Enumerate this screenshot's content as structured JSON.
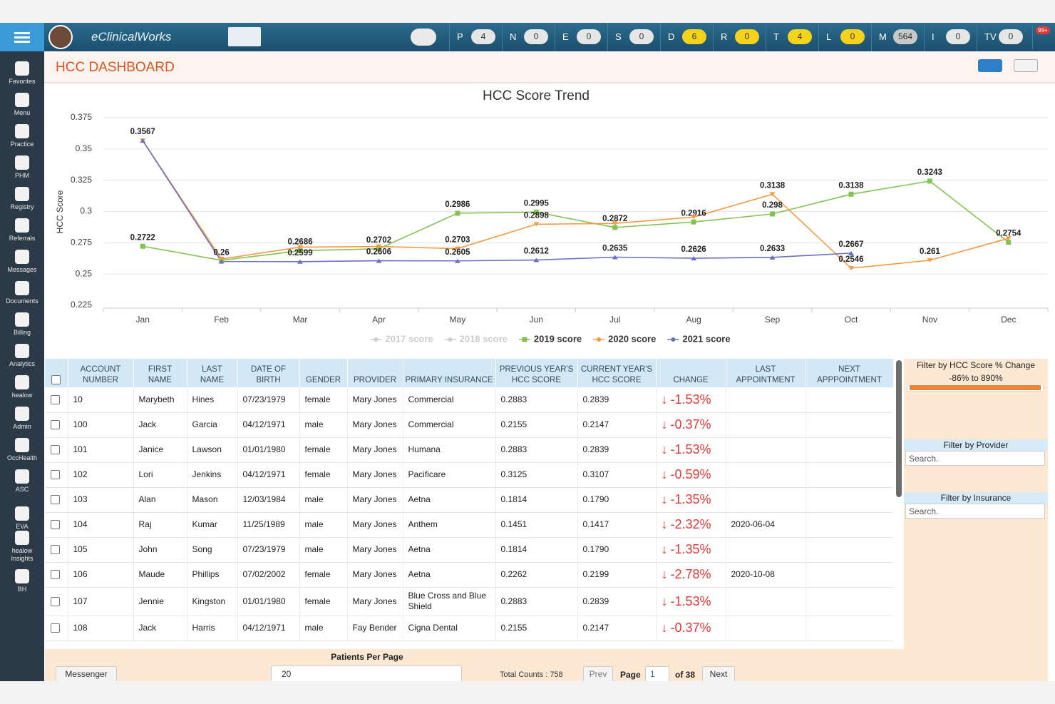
{
  "topbar": {
    "app_name": "eClinicalWorks",
    "badges": [
      {
        "label": "P",
        "count": 4,
        "color": "#e6e6e6"
      },
      {
        "label": "N",
        "count": 0,
        "color": "#e6e6e6"
      },
      {
        "label": "E",
        "count": 0,
        "color": "#e6e6e6"
      },
      {
        "label": "S",
        "count": 0,
        "color": "#e6e6e6"
      },
      {
        "label": "D",
        "count": 6,
        "color": "#f5d21c"
      },
      {
        "label": "R",
        "count": 0,
        "color": "#f5d21c"
      },
      {
        "label": "T",
        "count": 4,
        "color": "#f5d21c"
      },
      {
        "label": "L",
        "count": 0,
        "color": "#f5d21c"
      },
      {
        "label": "M",
        "count": 564,
        "color": "#c9c9c9"
      },
      {
        "label": "I",
        "count": 0,
        "color": "#e6e6e6"
      },
      {
        "label": "TV",
        "count": 0,
        "color": "#e6e6e6"
      }
    ],
    "notifications": "99+"
  },
  "sidebar": [
    "Favorites",
    "Menu",
    "Practice",
    "PHM",
    "Registry",
    "Referrals",
    "Messages",
    "Documents",
    "Billing",
    "Analytics",
    "healow",
    "Admin",
    "OccHealth",
    "ASC",
    "EVA",
    "healow Insights",
    "BH"
  ],
  "header": {
    "title": "HCC DASHBOARD"
  },
  "chart_data": {
    "type": "line",
    "title": "HCC Score Trend",
    "y_label": "HCC Score",
    "categories": [
      "Jan",
      "Feb",
      "Mar",
      "Apr",
      "May",
      "Jun",
      "Jul",
      "Aug",
      "Sep",
      "Oct",
      "Nov",
      "Dec"
    ],
    "ylim": [
      0.225,
      0.375
    ],
    "yticks": [
      0.225,
      0.25,
      0.275,
      0.3,
      0.325,
      0.35,
      0.375
    ],
    "grid": true,
    "legend": "bottom",
    "series": [
      {
        "name": "2017 score",
        "color": "#c8c8c8",
        "visible": false,
        "values": [
          null,
          null,
          null,
          null,
          null,
          null,
          null,
          null,
          null,
          null,
          null,
          null
        ]
      },
      {
        "name": "2018 score",
        "color": "#c8c8c8",
        "visible": false,
        "values": [
          null,
          null,
          null,
          null,
          null,
          null,
          null,
          null,
          null,
          null,
          null,
          null
        ]
      },
      {
        "name": "2019 score",
        "color": "#84c255",
        "visible": true,
        "values": [
          0.2722,
          0.261,
          0.2686,
          0.2702,
          0.2986,
          0.2995,
          0.2872,
          0.2916,
          0.298,
          0.3138,
          0.3243,
          0.2754
        ],
        "value_labels": [
          "0.2722",
          null,
          "0.2686",
          "0.2702",
          "0.2986",
          "0.2995",
          "0.2872",
          "0.2916",
          "0.298",
          "0.3138",
          "0.3243",
          "0.2754"
        ]
      },
      {
        "name": "2020 score",
        "color": "#f59a45",
        "visible": true,
        "values": [
          0.3567,
          0.262,
          0.2715,
          0.272,
          0.2703,
          0.2898,
          0.2905,
          0.2955,
          0.3138,
          0.2546,
          0.261,
          0.2785
        ],
        "value_labels": [
          "0.3567",
          null,
          null,
          null,
          "0.2703",
          "0.2898",
          null,
          null,
          "0.3138",
          "0.2546",
          "0.261",
          null
        ]
      },
      {
        "name": "2021 score",
        "color": "#6a70c2",
        "visible": true,
        "values": [
          0.3567,
          0.26,
          0.2599,
          0.2606,
          0.2605,
          0.2612,
          0.2635,
          0.2626,
          0.2633,
          0.2667,
          null,
          null
        ],
        "value_labels": [
          null,
          "0.26",
          "0.2599",
          "0.2606",
          "0.2605",
          "0.2612",
          "0.2635",
          "0.2626",
          "0.2633",
          "0.2667",
          null,
          null
        ]
      }
    ]
  },
  "table": {
    "columns": [
      "ACCOUNT NUMBER",
      "FIRST NAME",
      "LAST NAME",
      "DATE OF BIRTH",
      "GENDER",
      "PROVIDER",
      "PRIMARY INSURANCE",
      "PREVIOUS YEAR'S HCC SCORE",
      "CURRENT YEAR'S HCC SCORE",
      "CHANGE",
      "LAST APPOINTMENT",
      "NEXT APPPOINTMENT"
    ],
    "rows": [
      [
        "10",
        "Marybeth",
        "Hines",
        "07/23/1979",
        "female",
        "Mary Jones",
        "Commercial",
        "0.2883",
        "0.2839",
        "-1.53%",
        null,
        null
      ],
      [
        "100",
        "Jack",
        "Garcia",
        "04/12/1971",
        "male",
        "Mary Jones",
        "Commercial",
        "0.2155",
        "0.2147",
        "-0.37%",
        null,
        null
      ],
      [
        "101",
        "Janice",
        "Lawson",
        "01/01/1980",
        "female",
        "Mary Jones",
        "Humana",
        "0.2883",
        "0.2839",
        "-1.53%",
        null,
        null
      ],
      [
        "102",
        "Lori",
        "Jenkins",
        "04/12/1971",
        "female",
        "Mary Jones",
        "Pacificare",
        "0.3125",
        "0.3107",
        "-0.59%",
        null,
        null
      ],
      [
        "103",
        "Alan",
        "Mason",
        "12/03/1984",
        "male",
        "Mary Jones",
        "Aetna",
        "0.1814",
        "0.1790",
        "-1.35%",
        null,
        null
      ],
      [
        "104",
        "Raj",
        "Kumar",
        "11/25/1989",
        "male",
        "Mary Jones",
        "Anthem",
        "0.1451",
        "0.1417",
        "-2.32%",
        "2020-06-04",
        null
      ],
      [
        "105",
        "John",
        "Song",
        "07/23/1979",
        "male",
        "Mary Jones",
        "Aetna",
        "0.1814",
        "0.1790",
        "-1.35%",
        null,
        null
      ],
      [
        "106",
        "Maude",
        "Phillips",
        "07/02/2002",
        "female",
        "Mary Jones",
        "Aetna",
        "0.2262",
        "0.2199",
        "-2.78%",
        "2020-10-08",
        null
      ],
      [
        "107",
        "Jennie",
        "Kingston",
        "01/01/1980",
        "female",
        "Mary Jones",
        "Blue Cross and Blue Shield",
        "0.2883",
        "0.2839",
        "-1.53%",
        null,
        null
      ],
      [
        "108",
        "Jack",
        "Harris",
        "04/12/1971",
        "male",
        "Fay Bender",
        "Cigna Dental",
        "0.2155",
        "0.2147",
        "-0.37%",
        null,
        null
      ]
    ]
  },
  "filters": {
    "score_title": "Filter by HCC Score % Change",
    "score_range": "-86% to 890%",
    "provider_title": "Filter by Provider",
    "provider_placeholder": "Search.",
    "insurance_title": "Filter by Insurance",
    "insurance_placeholder": "Search."
  },
  "footer": {
    "messenger": "Messenger",
    "per_page_label": "Patients Per Page",
    "per_page": "20",
    "total": "Total Counts : 758",
    "prev": "Prev",
    "page_label": "Page",
    "page": "1",
    "of_pages": "of 38",
    "next": "Next"
  }
}
